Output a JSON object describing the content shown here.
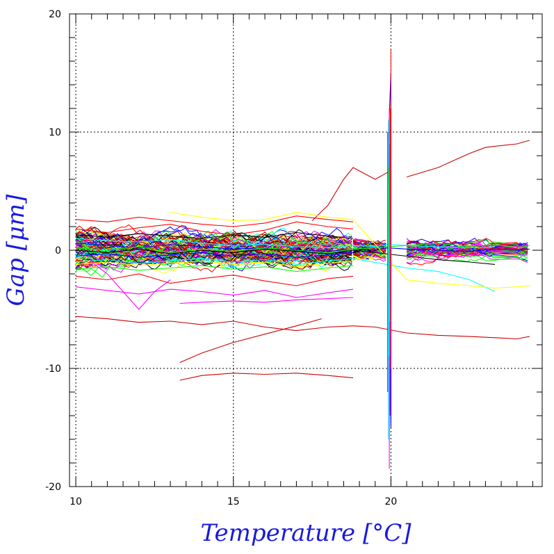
{
  "chart_data": {
    "type": "line",
    "title": "",
    "xlabel": "Temperature [°C]",
    "ylabel": "Gap [μm]",
    "xlim": [
      9.8,
      24.8
    ],
    "ylim": [
      -20,
      20
    ],
    "xticks": [
      10,
      15,
      20
    ],
    "xtick_labels": [
      "10",
      "15",
      "20"
    ],
    "yticks": [
      -20,
      -10,
      10,
      20
    ],
    "ytick_labels": [
      "-20",
      "-10",
      "10",
      "20"
    ],
    "zero_label": "0",
    "grid": true,
    "grid_style": "dotted",
    "legend": "none",
    "series_colors": [
      "#ff0000",
      "#cc0000",
      "#0000ff",
      "#00ffff",
      "#00ff00",
      "#ffff00",
      "#ff00ff",
      "#000000"
    ],
    "series": [
      {
        "color": "#0000ff",
        "x": [
          10.0,
          11.0,
          12.0,
          13.0,
          14.0,
          15.0,
          16.0,
          17.0,
          18.0,
          18.8,
          19.5,
          19.9,
          20.5,
          21.5,
          22.5,
          23.3,
          24.0,
          24.4
        ],
        "y": [
          0.6,
          0.4,
          0.2,
          0.5,
          0.3,
          0.1,
          0.2,
          0.0,
          -0.1,
          0.1,
          0.0,
          0.2,
          0.1,
          0.0,
          -0.1,
          0.1,
          0.0,
          0.1
        ]
      },
      {
        "color": "#0000ff",
        "x": [
          10.0,
          11.0,
          12.0,
          13.0,
          14.0,
          15.0,
          16.0,
          17.0,
          18.0,
          18.8
        ],
        "y": [
          -0.5,
          -0.3,
          -0.6,
          -0.4,
          -0.2,
          -0.5,
          -0.3,
          -0.6,
          -0.4,
          -0.2
        ]
      },
      {
        "color": "#00ffff",
        "x": [
          10.0,
          11.0,
          12.0,
          13.0,
          14.0,
          15.0,
          16.0,
          17.0,
          18.0,
          18.8,
          19.5,
          19.9,
          20.5,
          21.5,
          22.5,
          23.3
        ],
        "y": [
          1.0,
          0.8,
          0.7,
          0.9,
          0.6,
          0.4,
          0.5,
          0.3,
          0.2,
          0.4,
          0.3,
          0.5,
          0.4,
          0.3,
          0.2,
          0.3
        ]
      },
      {
        "color": "#00ffff",
        "x": [
          10.0,
          11.0,
          12.0,
          13.0,
          14.0,
          15.0,
          16.0,
          17.0,
          18.0,
          18.8,
          20.5,
          21.5,
          22.5,
          23.3
        ],
        "y": [
          -1.0,
          -0.8,
          -1.1,
          -0.9,
          -0.7,
          -1.0,
          -0.8,
          -1.2,
          -0.9,
          -0.7,
          -1.5,
          -1.8,
          -2.5,
          -3.5
        ]
      },
      {
        "color": "#00ff00",
        "x": [
          10.0,
          11.0,
          12.0,
          13.0,
          14.0,
          15.0,
          16.0,
          17.0,
          18.0,
          18.8,
          20.5,
          21.5,
          22.5,
          23.3,
          24.0,
          24.4
        ],
        "y": [
          0.2,
          0.0,
          0.3,
          -0.2,
          0.1,
          -0.1,
          0.2,
          0.0,
          -0.2,
          0.1,
          0.4,
          0.6,
          0.3,
          0.5,
          0.2,
          0.4
        ]
      },
      {
        "color": "#00ff00",
        "x": [
          10.0,
          11.0,
          12.0,
          13.0,
          14.0,
          15.0,
          16.0,
          17.0,
          18.0,
          18.8
        ],
        "y": [
          -1.6,
          -1.4,
          -1.7,
          -1.5,
          -1.3,
          -1.6,
          -1.4,
          -1.8,
          -1.5,
          -1.3
        ]
      },
      {
        "color": "#ff0000",
        "x": [
          10.0,
          11.0,
          12.0,
          13.0,
          14.0,
          15.0,
          16.0,
          17.0,
          18.0,
          18.8
        ],
        "y": [
          1.8,
          1.5,
          1.9,
          2.2,
          1.6,
          1.3,
          1.7,
          2.4,
          2.0,
          1.8
        ]
      },
      {
        "color": "#ff0000",
        "x": [
          10.0,
          11.0,
          12.0,
          13.0,
          14.0,
          15.0,
          16.0,
          17.0,
          18.0,
          18.8
        ],
        "y": [
          2.6,
          2.4,
          2.8,
          2.5,
          2.2,
          2.0,
          2.3,
          2.9,
          2.6,
          2.4
        ]
      },
      {
        "color": "#ff0000",
        "x": [
          10.0,
          11.0,
          12.0,
          13.0,
          14.0,
          15.0,
          16.0,
          17.0,
          18.0,
          18.8
        ],
        "y": [
          -2.2,
          -2.5,
          -2.0,
          -2.8,
          -2.4,
          -2.1,
          -2.6,
          -3.0,
          -2.4,
          -2.2
        ]
      },
      {
        "color": "#cc0000",
        "x": [
          10.0,
          11.0,
          12.0,
          13.0,
          14.0,
          15.0,
          16.0,
          17.0,
          18.0,
          18.8,
          19.5,
          20.5,
          21.5,
          22.5,
          23.3,
          24.0,
          24.4
        ],
        "y": [
          -5.6,
          -5.8,
          -6.1,
          -6.0,
          -6.3,
          -6.0,
          -6.5,
          -6.8,
          -6.5,
          -6.4,
          -6.5,
          -7.0,
          -7.2,
          -7.3,
          -7.4,
          -7.5,
          -7.3
        ]
      },
      {
        "color": "#cc0000",
        "x": [
          13.3,
          14.0,
          15.0,
          16.0,
          17.0,
          18.0,
          18.8
        ],
        "y": [
          -11.0,
          -10.6,
          -10.4,
          -10.5,
          -10.4,
          -10.6,
          -10.8
        ]
      },
      {
        "color": "#cc0000",
        "x": [
          13.3,
          14.0,
          15.0,
          16.0,
          17.0,
          17.8
        ],
        "y": [
          -9.5,
          -8.7,
          -7.8,
          -7.1,
          -6.4,
          -5.8
        ]
      },
      {
        "color": "#cc0000",
        "x": [
          17.5,
          18.0,
          18.5,
          18.8,
          19.5,
          19.9
        ],
        "y": [
          2.5,
          3.8,
          6.0,
          7.0,
          6.0,
          6.6
        ]
      },
      {
        "color": "#cc0000",
        "x": [
          20.5,
          21.5,
          22.0,
          22.5,
          23.0,
          23.3,
          24.0,
          24.4
        ],
        "y": [
          6.2,
          7.0,
          7.6,
          8.2,
          8.7,
          8.8,
          9.0,
          9.3
        ]
      },
      {
        "color": "#ff00ff",
        "x": [
          10.0,
          11.0,
          12.0,
          13.0,
          14.0,
          15.0,
          16.0,
          17.0,
          18.0,
          18.8
        ],
        "y": [
          -3.1,
          -3.4,
          -3.7,
          -3.3,
          -3.5,
          -3.8,
          -3.4,
          -4.0,
          -3.6,
          -3.3
        ]
      },
      {
        "color": "#ff00ff",
        "x": [
          13.3,
          14.0,
          15.0,
          16.0,
          17.0,
          18.0,
          18.8
        ],
        "y": [
          -4.5,
          -4.4,
          -4.3,
          -4.4,
          -4.2,
          -4.1,
          -4.0
        ]
      },
      {
        "color": "#ff00ff",
        "x": [
          10.5,
          11.0,
          11.5,
          12.0,
          12.5,
          13.0
        ],
        "y": [
          -1.0,
          -2.0,
          -3.5,
          -5.0,
          -3.5,
          -2.5
        ]
      },
      {
        "color": "#ffff00",
        "x": [
          13.0,
          14.0,
          15.0,
          16.0,
          17.0,
          18.0,
          18.8,
          20.5,
          21.5,
          22.5,
          23.3,
          24.0,
          24.4
        ],
        "y": [
          3.2,
          2.8,
          2.5,
          2.6,
          3.2,
          2.8,
          2.6,
          -2.5,
          -2.8,
          -3.0,
          -3.2,
          -3.1,
          -3.0
        ]
      },
      {
        "color": "#ffff00",
        "x": [
          10.0,
          11.0,
          12.0,
          13.0,
          14.0,
          15.0,
          16.0,
          17.0,
          18.0,
          18.8
        ],
        "y": [
          -1.2,
          -1.0,
          -1.3,
          -1.1,
          -0.9,
          -1.2,
          -1.0,
          -1.4,
          -1.1,
          -0.9
        ]
      },
      {
        "color": "#000000",
        "x": [
          10.0,
          11.0,
          12.0,
          13.0,
          14.0,
          15.0,
          16.0,
          17.0,
          18.0,
          18.8,
          20.5,
          21.5,
          22.5,
          23.3
        ],
        "y": [
          0.0,
          -0.2,
          0.1,
          -0.3,
          0.0,
          -0.2,
          0.1,
          -0.1,
          -0.3,
          0.0,
          -0.5,
          -0.8,
          -1.0,
          -1.2
        ]
      },
      {
        "color": "#000000",
        "x": [
          10.0,
          11.0,
          12.0,
          13.0,
          14.0,
          15.0,
          16.0,
          17.0,
          18.0,
          18.8
        ],
        "y": [
          1.3,
          1.1,
          1.4,
          1.2,
          1.0,
          1.3,
          1.1,
          1.5,
          1.2,
          1.0
        ]
      },
      {
        "color": "#0000ff",
        "x": [
          19.9,
          19.9,
          20.0,
          20.0,
          19.9,
          19.9,
          20.0
        ],
        "y": [
          -12.0,
          8.0,
          15.0,
          -15.0,
          10.0,
          -8.0,
          6.0
        ]
      },
      {
        "color": "#ff00ff",
        "x": [
          19.95,
          19.95,
          19.97,
          19.97
        ],
        "y": [
          -18.5,
          12.0,
          -14.0,
          9.0
        ]
      },
      {
        "color": "#ff0000",
        "x": [
          20.0,
          20.0,
          19.98
        ],
        "y": [
          17.0,
          -10.0,
          12.0
        ]
      },
      {
        "color": "#00ffff",
        "x": [
          19.92,
          19.92,
          19.94
        ],
        "y": [
          -16.0,
          11.0,
          -9.0
        ]
      },
      {
        "color": "#00ff00",
        "x": [
          19.93,
          19.96,
          19.93
        ],
        "y": [
          7.0,
          -6.0,
          4.0
        ]
      }
    ]
  }
}
